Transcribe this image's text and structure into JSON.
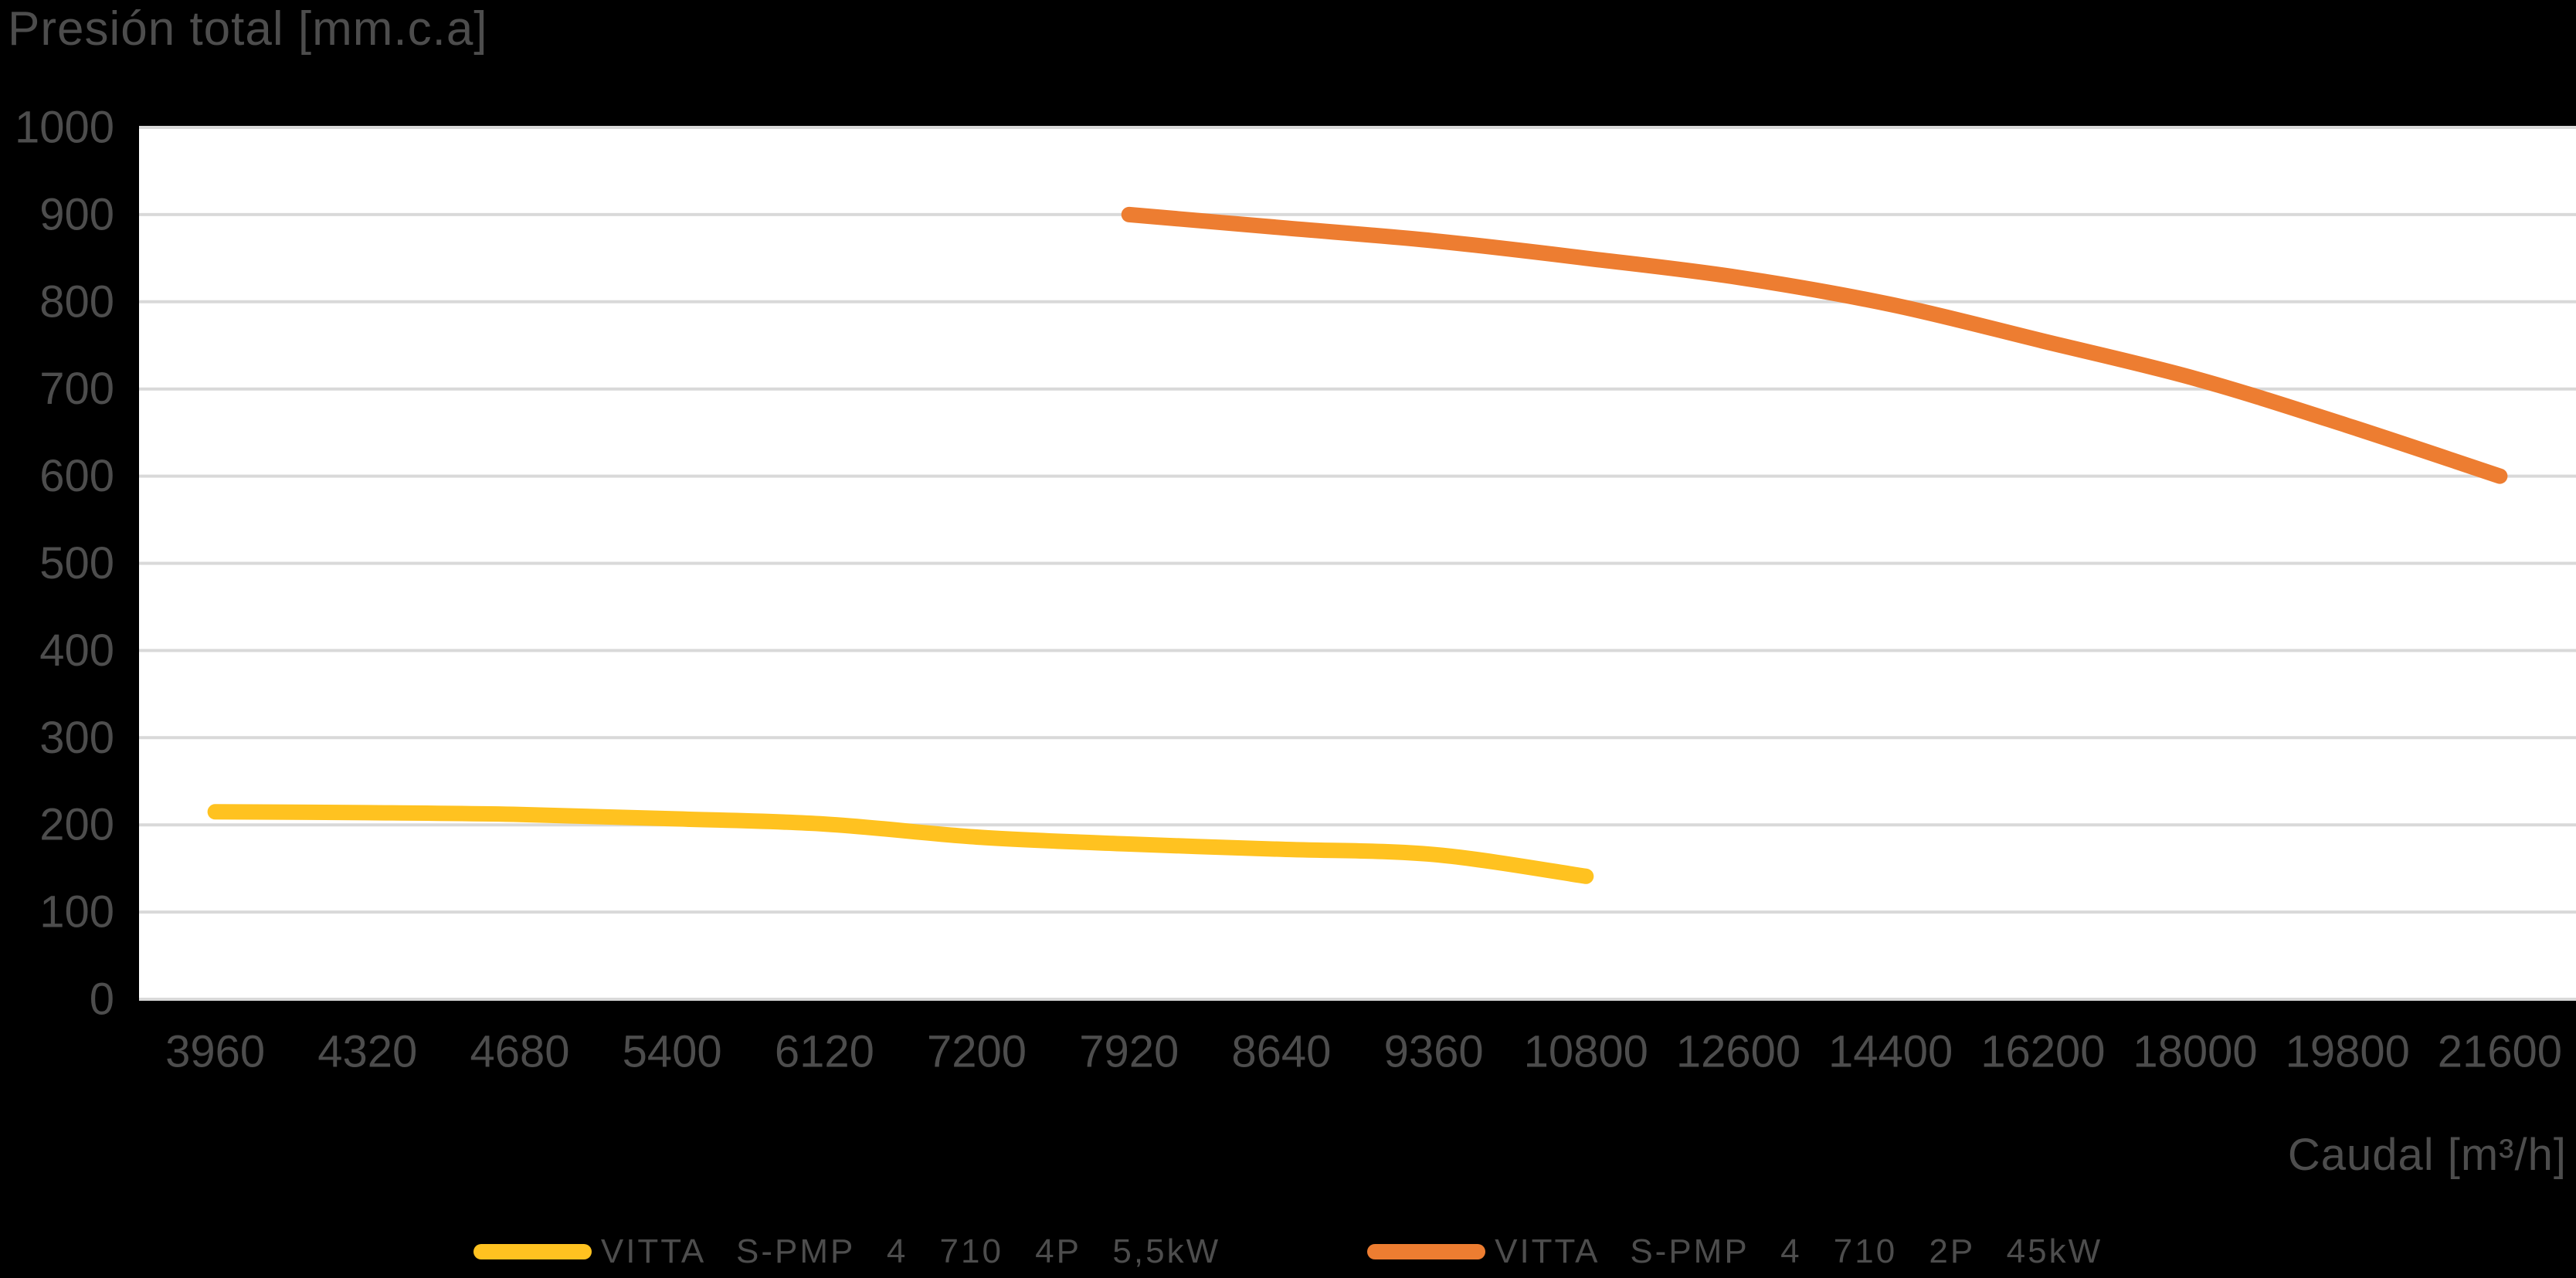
{
  "title": "Presión total [mm.c.a]",
  "x_axis_title": "Caudal [m³/h]",
  "colors": {
    "page_background": "#000000",
    "plot_background": "#FFFFFF",
    "gridline": "#D9D9D9",
    "text": "#4D4D4D",
    "series_yellow": "#FFC220",
    "series_orange": "#ED7D31"
  },
  "chart_data": {
    "type": "line",
    "title": "Presión total [mm.c.a]",
    "xlabel": "Caudal [m³/h]",
    "ylabel": "Presión total [mm.c.a]",
    "categories": [
      3960,
      4320,
      4680,
      5400,
      6120,
      7200,
      7920,
      8640,
      9360,
      10800,
      12600,
      14400,
      16200,
      18000,
      19800,
      21600
    ],
    "y_ticks": [
      0,
      100,
      200,
      300,
      400,
      500,
      600,
      700,
      800,
      900,
      1000
    ],
    "ylim": [
      0,
      1000
    ],
    "grid": "horizontal",
    "legend_position": "bottom",
    "series": [
      {
        "name": "VITTA S-PMP 4 710 4P 5,5kW",
        "color": "#FFC220",
        "start_index": 0,
        "values": [
          215,
          214,
          212,
          207,
          201,
          186,
          178,
          172,
          166,
          141
        ]
      },
      {
        "name": "VITTA S-PMP 4 710 2P 45kW",
        "color": "#ED7D31",
        "start_index": 6,
        "values": [
          900,
          885,
          870,
          850,
          828,
          797,
          755,
          712,
          658,
          600
        ]
      }
    ]
  }
}
